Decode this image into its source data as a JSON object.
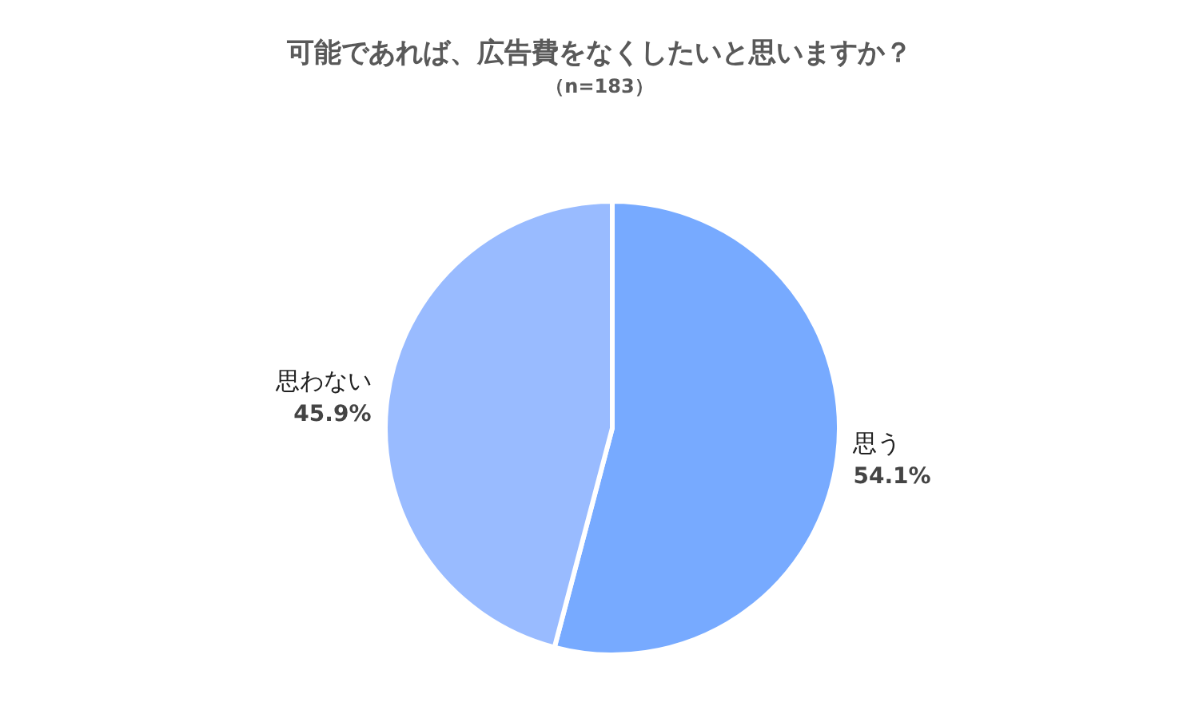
{
  "chart_data": {
    "type": "pie",
    "title": "可能であれば、広告費をなくしたいと思いますか？",
    "subtitle": "（n=183）",
    "categories": [
      "思う",
      "思わない"
    ],
    "values": [
      54.1,
      45.9
    ],
    "colors": [
      "#77aaff",
      "#99bbff"
    ],
    "value_labels": [
      "54.1%",
      "45.9%"
    ],
    "legend": false
  }
}
